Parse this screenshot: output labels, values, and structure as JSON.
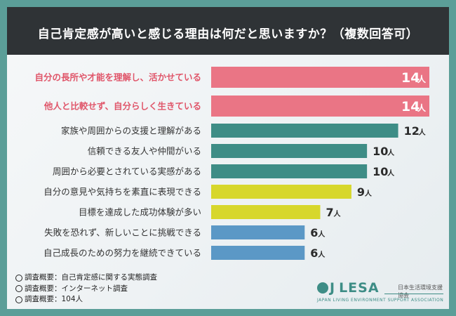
{
  "title": "自己肯定感が高いと感じる理由は何だと思いますか？（複数回答可）",
  "unit": "人",
  "colors": {
    "pink": "#ea7585",
    "teal": "#3e8d86",
    "yellow": "#d7d72c",
    "blue": "#5b98c6",
    "highlight_text": "#e0566a"
  },
  "chart_data": {
    "type": "bar",
    "orientation": "horizontal",
    "title": "自己肯定感が高いと感じる理由は何だと思いますか？（複数回答可）",
    "unit": "人",
    "categories": [
      "自分の長所や才能を理解し、活かせている",
      "他人と比較せず、自分らしく生きている",
      "家族や周囲からの支援と理解がある",
      "信頼できる友人や仲間がいる",
      "周囲から必要とされている実感がある",
      "自分の意見や気持ちを素直に表現できる",
      "目標を達成した成功体験が多い",
      "失敗を恐れず、新しいことに挑戦できる",
      "自己成長のための努力を継続できている"
    ],
    "values": [
      14,
      14,
      12,
      10,
      10,
      9,
      7,
      6,
      6
    ],
    "bar_colors": [
      "pink",
      "pink",
      "teal",
      "teal",
      "teal",
      "yellow",
      "yellow",
      "blue",
      "blue"
    ],
    "highlighted": [
      true,
      true,
      false,
      false,
      false,
      false,
      false,
      false,
      false
    ],
    "xlim": [
      0,
      14
    ]
  },
  "notes": [
    "調査概要：自己肯定感に関する実態調査",
    "調査概要：インターネット調査",
    "調査概要：104人"
  ],
  "logo": {
    "name": "LESA",
    "mark": "J",
    "jp": "日本生活環境支援協会",
    "en": "JAPAN LIVING ENVIRONMENT SUPPORT ASSOCIATION"
  }
}
